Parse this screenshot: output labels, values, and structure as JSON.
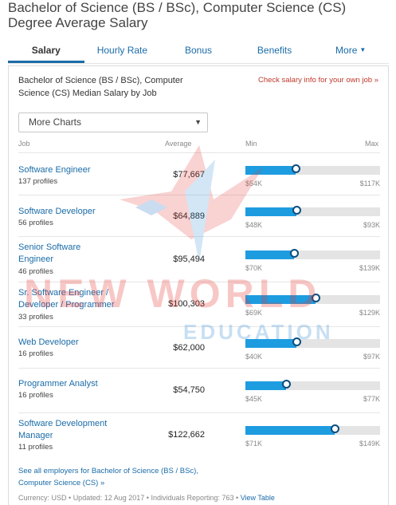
{
  "page": {
    "title": "Bachelor of Science (BS / BSc), Computer Science (CS) Degree Average Salary"
  },
  "tabs": [
    {
      "label": "Salary",
      "active": true
    },
    {
      "label": "Hourly Rate",
      "active": false
    },
    {
      "label": "Bonus",
      "active": false
    },
    {
      "label": "Benefits",
      "active": false
    },
    {
      "label": "More",
      "active": false
    }
  ],
  "panel": {
    "heading": "Bachelor of Science (BS / BSc), Computer Science (CS) Median Salary by Job",
    "salary_link": "Check salary info for your own job »",
    "select_value": "More Charts",
    "columns": {
      "job": "Job",
      "average": "Average",
      "min": "Min",
      "max": "Max"
    },
    "rows": [
      {
        "job": "Software Engineer",
        "profiles": "137 profiles",
        "average": "$77,667",
        "min": "$54K",
        "max": "$117K",
        "fill": 0.37
      },
      {
        "job": "Software Developer",
        "profiles": "56 profiles",
        "average": "$64,889",
        "min": "$48K",
        "max": "$93K",
        "fill": 0.38
      },
      {
        "job": "Senior Software Engineer",
        "profiles": "46 profiles",
        "average": "$95,494",
        "min": "$70K",
        "max": "$139K",
        "fill": 0.36
      },
      {
        "job": "Sr. Software Engineer / Developer / Programmer",
        "profiles": "33 profiles",
        "average": "$100,303",
        "min": "$69K",
        "max": "$129K",
        "fill": 0.52
      },
      {
        "job": "Web Developer",
        "profiles": "16 profiles",
        "average": "$62,000",
        "min": "$40K",
        "max": "$97K",
        "fill": 0.38
      },
      {
        "job": "Programmer Analyst",
        "profiles": "16 profiles",
        "average": "$54,750",
        "min": "$45K",
        "max": "$77K",
        "fill": 0.3
      },
      {
        "job": "Software Development Manager",
        "profiles": "11 profiles",
        "average": "$122,662",
        "min": "$71K",
        "max": "$149K",
        "fill": 0.66
      }
    ],
    "see_all": "See all employers for Bachelor of Science (BS / BSc), Computer Science (CS) »",
    "footer": {
      "currency": "Currency: USD",
      "updated": "Updated: 12 Aug 2017",
      "reporting": "Individuals Reporting: 763",
      "view_table": "View Table"
    }
  },
  "watermark": {
    "line1": "NEW WORLD",
    "line2": "EDUCATION"
  },
  "colors": {
    "link": "#1a6ca8",
    "bar_fill": "#1e9ce0",
    "bar_track": "#e4e4e4",
    "accent_red": "#c0392b",
    "knob_border": "#0a4d80"
  }
}
